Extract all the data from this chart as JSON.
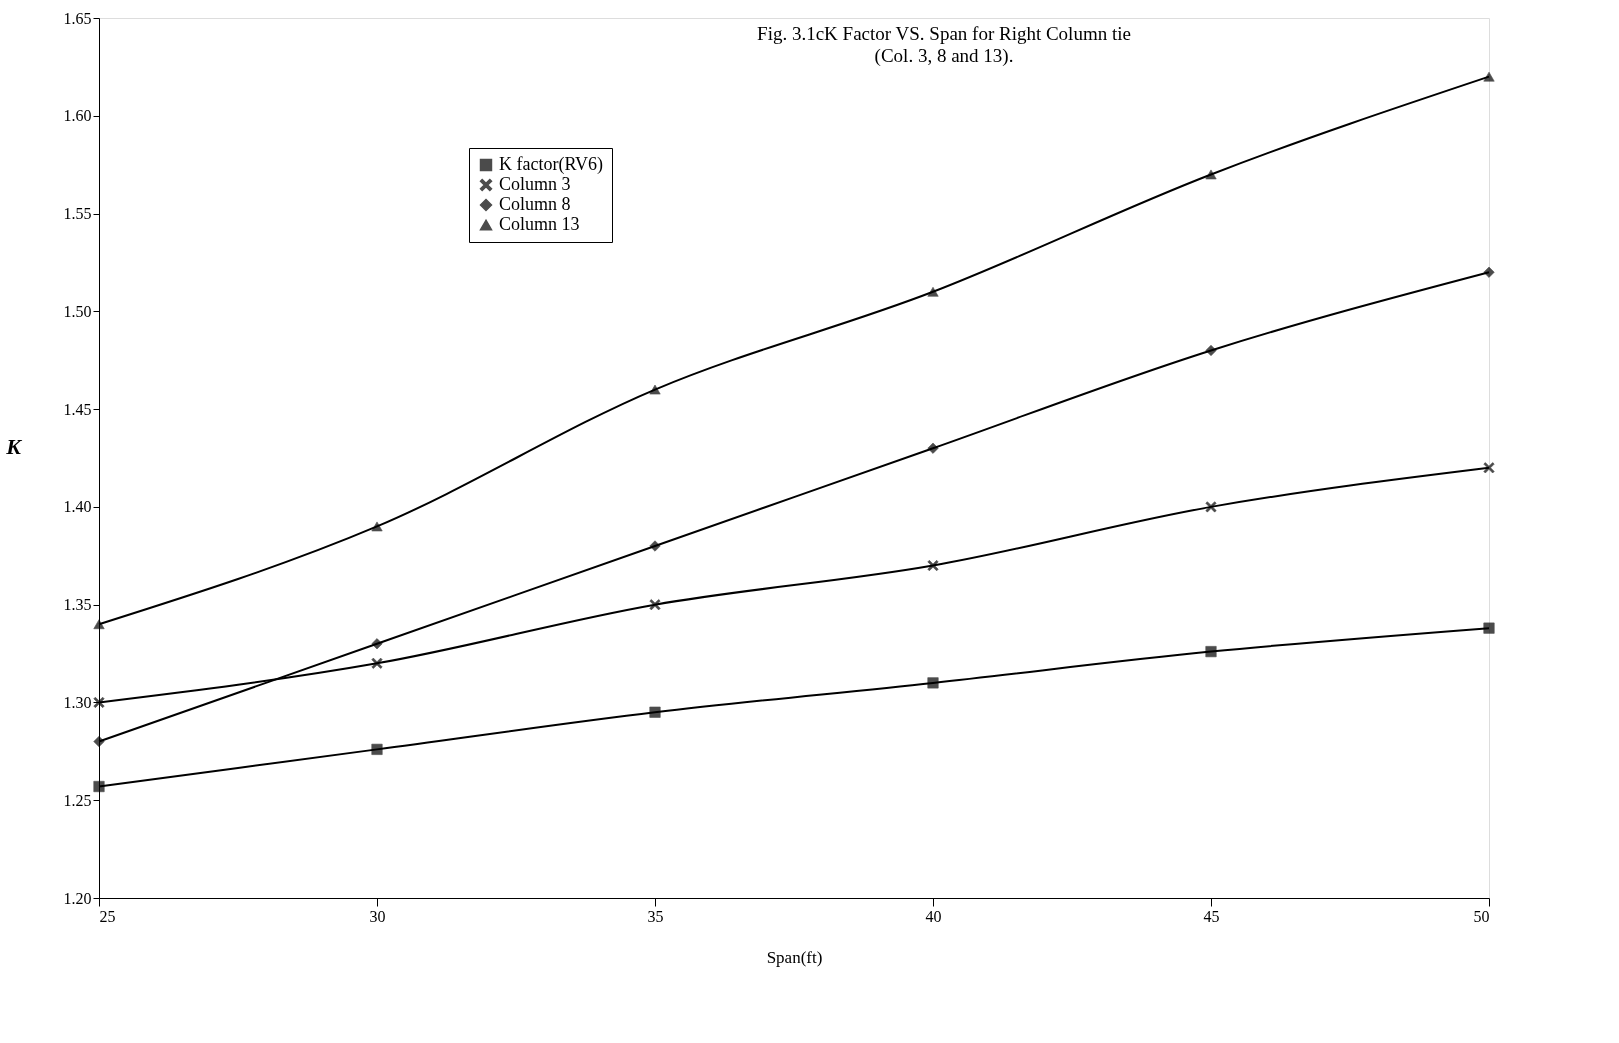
{
  "chart_data": {
    "type": "line",
    "title": "Fig. 3.1cK Factor VS. Span for Right Column tie",
    "subtitle": "(Col. 3, 8 and 13).",
    "xlabel": "Span(ft)",
    "ylabel": "K",
    "x": [
      25,
      30,
      35,
      40,
      45,
      50
    ],
    "series": [
      {
        "name": "K factor(RV6)",
        "color": "#000000",
        "marker": "square",
        "values": [
          1.257,
          1.276,
          1.295,
          1.31,
          1.326,
          1.338
        ]
      },
      {
        "name": "Column 3",
        "color": "#000000",
        "marker": "cross",
        "values": [
          1.3,
          1.32,
          1.35,
          1.37,
          1.4,
          1.42
        ]
      },
      {
        "name": "Column 8",
        "color": "#000000",
        "marker": "diamond",
        "values": [
          1.28,
          1.33,
          1.38,
          1.43,
          1.48,
          1.52
        ]
      },
      {
        "name": "Column 13",
        "color": "#000000",
        "marker": "triangle",
        "values": [
          1.34,
          1.39,
          1.46,
          1.51,
          1.57,
          1.62
        ]
      }
    ],
    "xlim": [
      25,
      50
    ],
    "xticks": [
      25,
      30,
      35,
      40,
      45,
      50
    ],
    "ylim": [
      1.2,
      1.65
    ],
    "yticks": [
      {
        "value": 1.2,
        "label": "1.20"
      },
      {
        "value": 1.25,
        "label": "1.25"
      },
      {
        "value": 1.3,
        "label": "1.30"
      },
      {
        "value": 1.35,
        "label": "1.35"
      },
      {
        "value": 1.4,
        "label": "1.40"
      },
      {
        "value": 1.45,
        "label": "1.45"
      },
      {
        "value": 1.5,
        "label": "1.50"
      },
      {
        "value": 1.55,
        "label": "1.55"
      },
      {
        "value": 1.6,
        "label": "1.60"
      },
      {
        "value": 1.65,
        "label": "1.65"
      }
    ],
    "grid": false,
    "legend": "top left",
    "line_style": "solid"
  }
}
